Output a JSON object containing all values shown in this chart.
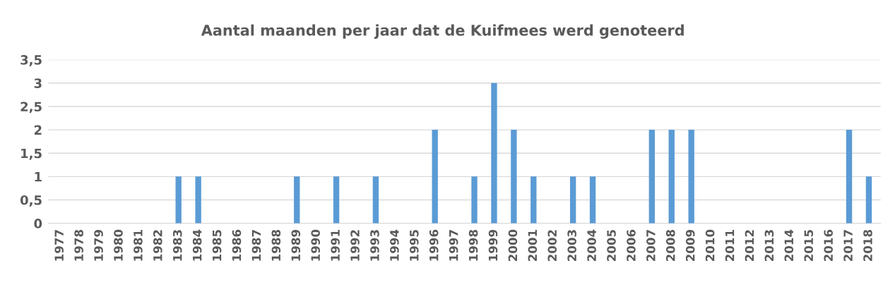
{
  "chart_data": {
    "type": "bar",
    "title": "Aantal maanden per jaar dat de Kuifmees werd genoteerd",
    "categories": [
      "1977",
      "1978",
      "1979",
      "1980",
      "1981",
      "1982",
      "1983",
      "1984",
      "1985",
      "1986",
      "1987",
      "1988",
      "1989",
      "1990",
      "1991",
      "1992",
      "1993",
      "1994",
      "1995",
      "1996",
      "1997",
      "1998",
      "1999",
      "2000",
      "2001",
      "2002",
      "2003",
      "2004",
      "2005",
      "2006",
      "2007",
      "2008",
      "2009",
      "2010",
      "2011",
      "2012",
      "2013",
      "2014",
      "2015",
      "2016",
      "2017",
      "2018"
    ],
    "values": [
      0,
      0,
      0,
      0,
      0,
      0,
      1,
      1,
      0,
      0,
      0,
      0,
      1,
      0,
      1,
      0,
      1,
      0,
      0,
      2,
      0,
      1,
      3,
      2,
      1,
      0,
      1,
      1,
      0,
      0,
      2,
      2,
      2,
      0,
      0,
      0,
      0,
      0,
      0,
      0,
      2,
      1
    ],
    "color": "#5b9bd5",
    "ylim": [
      0,
      3.5
    ],
    "yticks": [
      0,
      {
        "value": 0.5,
        "label": "0,5"
      },
      1,
      {
        "value": 1.5,
        "label": "1,5"
      },
      2,
      {
        "value": 2.5,
        "label": "2,5"
      },
      3,
      {
        "value": 3.5,
        "label": "3,5"
      }
    ],
    "grid": "y"
  }
}
